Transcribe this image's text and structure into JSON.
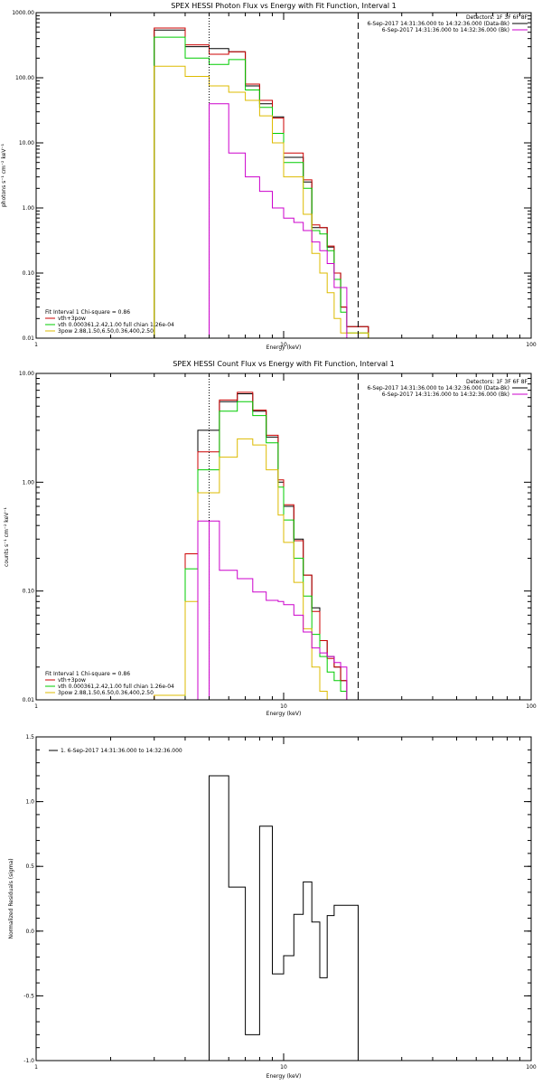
{
  "chart_data": [
    {
      "type": "line",
      "panel": "photon",
      "title": "SPEX HESSI Photon Flux vs Energy with Fit Function, Interval 1",
      "xlabel": "Energy (keV)",
      "ylabel": "photons s⁻¹ cm⁻² keV⁻¹",
      "xscale": "log",
      "yscale": "log",
      "xlim": [
        1,
        100
      ],
      "ylim": [
        0.01,
        1000
      ],
      "x_ticks": [
        {
          "v": 1,
          "label": "1"
        },
        {
          "v": 10,
          "label": "10"
        },
        {
          "v": 100,
          "label": "100"
        }
      ],
      "y_ticks": [
        {
          "v": 0.01,
          "label": "0.01"
        },
        {
          "v": 0.1,
          "label": "0.10"
        },
        {
          "v": 1,
          "label": "1.00"
        },
        {
          "v": 10,
          "label": "10.00"
        },
        {
          "v": 100,
          "label": "100.00"
        },
        {
          "v": 1000,
          "label": "1000.00"
        }
      ],
      "vlines": [
        {
          "x": 5.0,
          "style": "dotted",
          "color": "#000000"
        },
        {
          "x": 5.0,
          "style": "solid",
          "color": "#cc00cc"
        },
        {
          "x": 20.0,
          "style": "dashed",
          "color": "#000000"
        }
      ],
      "detectors": "Detectors: 1F 3F 6F 8F",
      "legend_right": [
        {
          "text": "6-Sep-2017 14:31:36.000 to 14:32:36.000 (Data-Bk)",
          "color": "#000000"
        },
        {
          "text": "6-Sep-2017 14:31:36.000 to 14:32:36.000 (Bk)",
          "color": "#cc00cc"
        }
      ],
      "fit_header": "Fit Interval 1    Chi-square = 0.86",
      "legend_left": [
        {
          "text": "vth+3pow",
          "color": "#cc0000"
        },
        {
          "text": "vth 0.000361,2.42,1.00   full chian 1.26e-04",
          "color": "#00cc00"
        },
        {
          "text": "3pow 2.88,1.50,6.50,0.36,400,2.50",
          "color": "#ddbb00"
        }
      ],
      "edges": [
        3.0,
        3.5,
        4.0,
        4.5,
        5.0,
        5.5,
        6.0,
        6.5,
        7.0,
        7.5,
        8.0,
        8.5,
        9.0,
        9.5,
        10.0,
        11.0,
        12.0,
        13.0,
        14.0,
        15.0,
        16.0,
        17.0,
        18.0,
        19.0,
        20.0,
        21.0,
        22.0
      ],
      "series": [
        {
          "key": "data",
          "color": "#000000",
          "values": [
            540,
            540,
            300,
            300,
            280,
            280,
            250,
            250,
            75,
            75,
            40,
            40,
            25,
            25,
            6,
            6,
            2.5,
            0.5,
            0.5,
            0.25,
            0.1,
            0.03,
            0.015,
            0.015,
            0.015,
            0.015
          ]
        },
        {
          "key": "total",
          "color": "#cc0000",
          "values": [
            580,
            580,
            320,
            320,
            230,
            230,
            250,
            250,
            80,
            80,
            45,
            45,
            24,
            24,
            7,
            7,
            2.7,
            0.55,
            0.5,
            0.26,
            0.1,
            0.03,
            0.015,
            0.015,
            0.015,
            0.015
          ]
        },
        {
          "key": "vth",
          "color": "#00cc00",
          "values": [
            420,
            420,
            200,
            200,
            160,
            160,
            190,
            190,
            65,
            65,
            35,
            35,
            14,
            14,
            5,
            5,
            2,
            0.45,
            0.4,
            0.22,
            0.08,
            0.025,
            0.012,
            0.012,
            0.012,
            0.012
          ]
        },
        {
          "key": "pow",
          "color": "#ddbb00",
          "values": [
            150,
            150,
            105,
            105,
            75,
            75,
            60,
            60,
            45,
            45,
            26,
            26,
            10,
            10,
            3,
            3,
            0.8,
            0.2,
            0.1,
            0.05,
            0.02,
            0.012,
            0.012,
            0.012,
            0.012,
            0.012
          ]
        },
        {
          "key": "bk",
          "color": "#cc00cc",
          "values": [
            null,
            null,
            null,
            null,
            40,
            40,
            7,
            7,
            3,
            3,
            1.8,
            1.8,
            1.0,
            1.0,
            0.7,
            0.6,
            0.45,
            0.3,
            0.22,
            0.14,
            0.06,
            0.06,
            null,
            null,
            null,
            null
          ]
        }
      ]
    },
    {
      "type": "line",
      "panel": "count",
      "title": "SPEX HESSI Count Flux vs Energy with Fit Function, Interval 1",
      "xlabel": "Energy (keV)",
      "ylabel": "counts s⁻¹ cm⁻² keV⁻¹",
      "xscale": "log",
      "yscale": "log",
      "xlim": [
        1,
        100
      ],
      "ylim": [
        0.01,
        10
      ],
      "x_ticks": [
        {
          "v": 1,
          "label": "1"
        },
        {
          "v": 10,
          "label": "10"
        },
        {
          "v": 100,
          "label": "100"
        }
      ],
      "y_ticks": [
        {
          "v": 0.01,
          "label": "0.01"
        },
        {
          "v": 0.1,
          "label": "0.10"
        },
        {
          "v": 1,
          "label": "1.00"
        },
        {
          "v": 10,
          "label": "10.00"
        }
      ],
      "vlines": [
        {
          "x": 5.0,
          "style": "dotted",
          "color": "#000000"
        },
        {
          "x": 5.0,
          "style": "solid",
          "color": "#cc00cc"
        },
        {
          "x": 20.0,
          "style": "dashed",
          "color": "#000000"
        }
      ],
      "detectors": "Detectors: 1F 3F 6F 8F",
      "legend_right": [
        {
          "text": "6-Sep-2017 14:31:36.000 to 14:32:36.000 (Data-Bk)",
          "color": "#000000"
        },
        {
          "text": "6-Sep-2017 14:31:36.000 to 14:32:36.000 (Bk)",
          "color": "#cc00cc"
        }
      ],
      "fit_header": "Fit Interval 1    Chi-square = 0.86",
      "legend_left": [
        {
          "text": "vth+3pow",
          "color": "#cc0000"
        },
        {
          "text": "vth 0.000361,2.42,1.00   full chian 1.26e-04",
          "color": "#00cc00"
        },
        {
          "text": "3pow 2.88,1.50,6.50,0.36,400,2.50",
          "color": "#ddbb00"
        }
      ],
      "edges": [
        3.0,
        3.5,
        4.0,
        4.5,
        5.0,
        5.5,
        6.0,
        6.5,
        7.0,
        7.5,
        8.0,
        8.5,
        9.0,
        9.5,
        10.0,
        11.0,
        12.0,
        13.0,
        14.0,
        15.0,
        16.0,
        17.0,
        18.0,
        19.0,
        20.0
      ],
      "series": [
        {
          "key": "data",
          "color": "#000000",
          "values": [
            null,
            null,
            null,
            3.0,
            3.0,
            5.5,
            5.5,
            6.5,
            6.5,
            4.5,
            4.5,
            2.6,
            2.6,
            1.0,
            0.6,
            0.3,
            0.14,
            0.07,
            0.035,
            0.025,
            0.02,
            0.015,
            null,
            null
          ]
        },
        {
          "key": "total",
          "color": "#cc0000",
          "values": [
            0.011,
            0.011,
            0.22,
            1.9,
            1.9,
            5.7,
            5.7,
            6.7,
            6.7,
            4.6,
            4.6,
            2.7,
            2.7,
            1.05,
            0.62,
            0.29,
            0.14,
            0.065,
            0.035,
            0.024,
            0.02,
            0.015,
            null,
            null
          ]
        },
        {
          "key": "vth",
          "color": "#00cc00",
          "values": [
            null,
            null,
            0.16,
            1.3,
            1.3,
            4.5,
            4.5,
            5.5,
            5.5,
            4.1,
            4.1,
            2.3,
            2.3,
            0.9,
            0.45,
            0.2,
            0.09,
            0.04,
            0.025,
            0.018,
            0.015,
            0.012,
            null,
            null
          ]
        },
        {
          "key": "pow",
          "color": "#ddbb00",
          "values": [
            0.011,
            0.011,
            0.08,
            0.8,
            0.8,
            1.7,
            1.7,
            2.5,
            2.5,
            2.2,
            2.2,
            1.3,
            1.3,
            0.5,
            0.28,
            0.12,
            0.045,
            0.02,
            0.012,
            0.01,
            null,
            null,
            null,
            null
          ]
        },
        {
          "key": "bk",
          "color": "#cc00cc",
          "values": [
            null,
            null,
            null,
            0.44,
            0.44,
            0.155,
            0.155,
            0.13,
            0.13,
            0.098,
            0.098,
            0.082,
            0.082,
            0.08,
            0.075,
            0.06,
            0.042,
            0.03,
            0.027,
            0.025,
            0.022,
            0.02,
            null,
            null
          ]
        }
      ]
    },
    {
      "type": "line",
      "panel": "residuals",
      "title": "",
      "xlabel": "Energy (keV)",
      "ylabel": "Normalized Residuals (sigma)",
      "xscale": "log",
      "yscale": "linear",
      "xlim": [
        1,
        100
      ],
      "ylim": [
        -1.0,
        1.5
      ],
      "x_ticks": [
        {
          "v": 1,
          "label": "1"
        },
        {
          "v": 10,
          "label": "10"
        },
        {
          "v": 100,
          "label": "100"
        }
      ],
      "y_ticks": [
        {
          "v": -1.0,
          "label": "-1.0"
        },
        {
          "v": -0.5,
          "label": "-0.5"
        },
        {
          "v": 0.0,
          "label": "0.0"
        },
        {
          "v": 0.5,
          "label": "0.5"
        },
        {
          "v": 1.0,
          "label": "1.0"
        },
        {
          "v": 1.5,
          "label": "1.5"
        }
      ],
      "legend_text": "1.  6-Sep-2017 14:31:36.000 to 14:32:36.000",
      "edges": [
        5.0,
        6.0,
        7.0,
        8.0,
        9.0,
        10.0,
        11.0,
        12.0,
        13.0,
        14.0,
        15.0,
        16.0,
        17.0,
        18.0,
        20.0
      ],
      "series": [
        {
          "key": "residuals",
          "color": "#000000",
          "values": [
            1.2,
            0.34,
            -0.8,
            0.81,
            -0.33,
            -0.19,
            0.13,
            0.38,
            0.07,
            -0.36,
            0.12,
            0.2,
            0.2,
            0.2
          ]
        }
      ]
    }
  ]
}
